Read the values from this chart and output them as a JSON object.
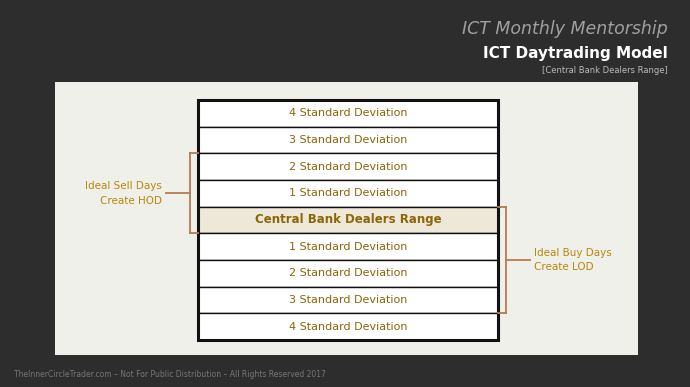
{
  "bg_color": "#2d2d2d",
  "panel_bg": "#f0f0eb",
  "title1": "ICT Monthly Mentorship",
  "title2": "ICT Daytrading Model",
  "subtitle": "[Central Bank Dealers Range]",
  "footer": "TheInnerCircleTrader.com – Not For Public Distribution – All Rights Reserved 2017",
  "rows": [
    "4 Standard Deviation",
    "3 Standard Deviation",
    "2 Standard Deviation",
    "1 Standard Deviation",
    "Central Bank Dealers Range",
    "1 Standard Deviation",
    "2 Standard Deviation",
    "3 Standard Deviation",
    "4 Standard Deviation"
  ],
  "text_color_rows": "#8b6508",
  "center_row_bg": "#ede8d8",
  "normal_row_bg": "#ffffff",
  "border_color": "#111111",
  "left_label_line1": "Ideal Sell Days",
  "left_label_line2": "Create HOD",
  "right_label_line1": "Ideal Buy Days",
  "right_label_line2": "Create LOD",
  "brace_color": "#b87a50",
  "title1_color": "#a0a0a0",
  "title2_color": "#ffffff",
  "subtitle_color": "#bbbbbb",
  "footer_color": "#777777",
  "side_label_color": "#b8860b"
}
